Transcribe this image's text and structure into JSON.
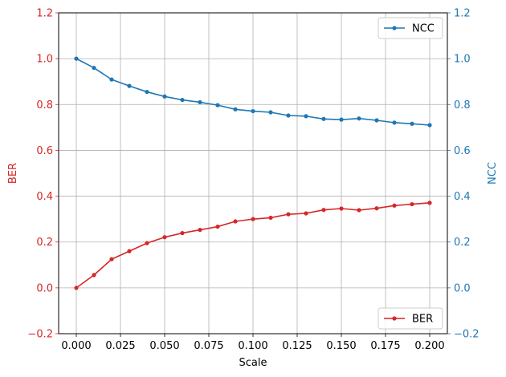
{
  "chart_data": {
    "type": "line",
    "x": [
      0.0,
      0.01,
      0.02,
      0.03,
      0.04,
      0.05,
      0.06,
      0.07,
      0.08,
      0.09,
      0.1,
      0.11,
      0.12,
      0.13,
      0.14,
      0.15,
      0.16,
      0.17,
      0.18,
      0.19,
      0.2
    ],
    "series": [
      {
        "name": "BER",
        "axis": "left",
        "color": "#d62728",
        "marker": "circle",
        "values": [
          0.0,
          0.056,
          0.125,
          0.16,
          0.195,
          0.221,
          0.239,
          0.253,
          0.267,
          0.29,
          0.3,
          0.306,
          0.321,
          0.325,
          0.34,
          0.346,
          0.339,
          0.347,
          0.359,
          0.365,
          0.371
        ]
      },
      {
        "name": "NCC",
        "axis": "right",
        "color": "#1f77b4",
        "marker": "circle",
        "values": [
          1.0,
          0.96,
          0.909,
          0.881,
          0.855,
          0.835,
          0.82,
          0.81,
          0.797,
          0.779,
          0.771,
          0.766,
          0.752,
          0.749,
          0.737,
          0.734,
          0.739,
          0.731,
          0.721,
          0.716,
          0.71
        ]
      }
    ],
    "xlabel": "Scale",
    "ylabel_left": "BER",
    "ylabel_right": "NCC",
    "xlim": [
      -0.01,
      0.21
    ],
    "ylim_left": [
      -0.2,
      1.2
    ],
    "ylim_right": [
      -0.2,
      1.2
    ],
    "xticks": [
      "0.000",
      "0.025",
      "0.050",
      "0.075",
      "0.100",
      "0.125",
      "0.150",
      "0.175",
      "0.200"
    ],
    "yticks_left": [
      "−0.2",
      "0.0",
      "0.2",
      "0.4",
      "0.6",
      "0.8",
      "1.0",
      "1.2"
    ],
    "yticks_right": [
      "−0.2",
      "0.0",
      "0.2",
      "0.4",
      "0.6",
      "0.8",
      "1.0",
      "1.2"
    ],
    "grid": true,
    "legends": [
      {
        "series": "NCC",
        "placement": "upper right"
      },
      {
        "series": "BER",
        "placement": "lower right"
      }
    ]
  }
}
